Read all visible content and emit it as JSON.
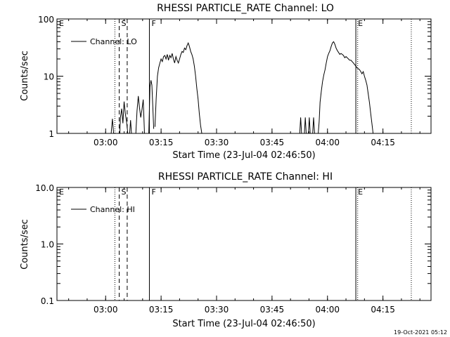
{
  "chart_data": [
    {
      "type": "line",
      "title": "RHESSI PARTICLE_RATE Channel: LO",
      "xlabel": "Start Time (23-Jul-04 02:46:50)",
      "ylabel": "Counts/sec",
      "yscale": "log",
      "ylim": [
        1,
        100
      ],
      "xlim": [
        "02:46:50",
        "04:28:00"
      ],
      "x_tick_labels": [
        "03:00",
        "03:15",
        "03:30",
        "03:45",
        "04:00",
        "04:15"
      ],
      "y_tick_labels": [
        "1",
        "10",
        "100"
      ],
      "legend": {
        "placement": "top-left",
        "entries": [
          "Channel: LO"
        ]
      },
      "markers": [
        {
          "label": "E",
          "time": "02:46:50",
          "style": "none"
        },
        {
          "label": "S",
          "time": "03:03:40",
          "style": "dashed"
        },
        {
          "label": "",
          "time": "03:05:50",
          "style": "dashed"
        },
        {
          "label": "F",
          "time": "03:11:50",
          "style": "solid"
        },
        {
          "label": "E",
          "time": "04:07:40",
          "style": "solid"
        }
      ],
      "dotted_lines": [
        "03:02:30",
        "04:08:10",
        "04:22:40"
      ],
      "series": [
        {
          "name": "Channel: LO",
          "segments": [
            [
              [
                "03:01:30",
                1
              ],
              [
                "03:01:50",
                1.8
              ],
              [
                "03:02:10",
                1
              ]
            ],
            [
              [
                "03:03:50",
                1
              ],
              [
                "03:04:00",
                1.9
              ],
              [
                "03:04:20",
                2.7
              ],
              [
                "03:04:40",
                1.5
              ],
              [
                "03:05:00",
                3.6
              ],
              [
                "03:05:20",
                2.2
              ],
              [
                "03:05:40",
                1.6
              ],
              [
                "03:06:00",
                1
              ]
            ],
            [
              [
                "03:06:30",
                1
              ],
              [
                "03:06:45",
                1.7
              ],
              [
                "03:07:00",
                1
              ]
            ],
            [
              [
                "03:08:10",
                1
              ],
              [
                "03:08:30",
                2.5
              ],
              [
                "03:08:50",
                4.5
              ],
              [
                "03:09:10",
                2.8
              ],
              [
                "03:09:30",
                1.9
              ],
              [
                "03:09:50",
                2.6
              ],
              [
                "03:10:10",
                3.9
              ],
              [
                "03:10:30",
                1
              ]
            ],
            [
              [
                "03:11:40",
                1
              ],
              [
                "03:12:00",
                6.5
              ],
              [
                "03:12:15",
                8.5
              ],
              [
                "03:12:30",
                7
              ],
              [
                "03:12:45",
                3
              ],
              [
                "03:13:00",
                1.2
              ]
            ],
            [
              [
                "03:13:20",
                1.3
              ],
              [
                "03:13:40",
                4
              ],
              [
                "03:14:00",
                10
              ],
              [
                "03:14:20",
                14
              ],
              [
                "03:14:40",
                17
              ],
              [
                "03:15:00",
                20
              ],
              [
                "03:15:20",
                18
              ],
              [
                "03:15:40",
                22
              ],
              [
                "03:16:00",
                23
              ],
              [
                "03:16:20",
                20
              ],
              [
                "03:16:40",
                24
              ],
              [
                "03:17:00",
                19
              ],
              [
                "03:17:20",
                23
              ],
              [
                "03:17:40",
                21
              ],
              [
                "03:18:00",
                25
              ],
              [
                "03:18:20",
                20
              ],
              [
                "03:18:40",
                17
              ],
              [
                "03:19:00",
                22
              ],
              [
                "03:19:20",
                19
              ],
              [
                "03:19:40",
                17
              ],
              [
                "03:20:00",
                20
              ],
              [
                "03:20:20",
                24
              ],
              [
                "03:20:40",
                27
              ],
              [
                "03:21:00",
                26
              ],
              [
                "03:21:20",
                31
              ],
              [
                "03:21:40",
                29
              ],
              [
                "03:22:00",
                34
              ],
              [
                "03:22:20",
                38
              ],
              [
                "03:22:40",
                33
              ],
              [
                "03:23:00",
                27
              ],
              [
                "03:23:20",
                24
              ],
              [
                "03:23:40",
                20
              ],
              [
                "03:24:00",
                15
              ],
              [
                "03:24:20",
                10
              ],
              [
                "03:24:40",
                6
              ],
              [
                "03:25:00",
                4
              ],
              [
                "03:25:20",
                2.2
              ],
              [
                "03:25:40",
                1.4
              ],
              [
                "03:26:00",
                1
              ]
            ],
            [
              [
                "03:52:30",
                1
              ],
              [
                "03:52:45",
                1.9
              ],
              [
                "03:53:00",
                1
              ]
            ],
            [
              [
                "03:53:45",
                1
              ],
              [
                "03:54:00",
                1.9
              ],
              [
                "03:54:15",
                1
              ]
            ],
            [
              [
                "03:54:50",
                1
              ],
              [
                "03:55:05",
                1.9
              ],
              [
                "03:55:20",
                1
              ]
            ],
            [
              [
                "03:56:00",
                1
              ],
              [
                "03:56:15",
                1.9
              ],
              [
                "03:56:30",
                1
              ]
            ],
            [
              [
                "03:57:30",
                1
              ],
              [
                "03:57:45",
                1.6
              ],
              [
                "03:58:00",
                3.5
              ],
              [
                "03:58:20",
                5.5
              ],
              [
                "03:58:40",
                8
              ],
              [
                "03:59:00",
                10.5
              ],
              [
                "03:59:20",
                13
              ],
              [
                "03:59:40",
                17
              ],
              [
                "04:00:00",
                22
              ],
              [
                "04:00:20",
                25
              ],
              [
                "04:00:40",
                28
              ],
              [
                "04:01:00",
                33
              ],
              [
                "04:01:20",
                38
              ],
              [
                "04:01:40",
                40
              ],
              [
                "04:02:00",
                36
              ],
              [
                "04:02:20",
                31
              ],
              [
                "04:02:40",
                28
              ],
              [
                "04:03:00",
                26
              ],
              [
                "04:03:20",
                24
              ],
              [
                "04:03:40",
                25
              ],
              [
                "04:04:00",
                24
              ],
              [
                "04:04:20",
                23
              ],
              [
                "04:04:40",
                21
              ],
              [
                "04:05:00",
                22
              ],
              [
                "04:05:20",
                21
              ],
              [
                "04:05:40",
                20
              ],
              [
                "04:06:00",
                19
              ],
              [
                "04:06:20",
                19
              ],
              [
                "04:06:40",
                18
              ],
              [
                "04:07:00",
                17
              ],
              [
                "04:07:20",
                16
              ],
              [
                "04:07:40",
                15
              ],
              [
                "04:08:00",
                14
              ],
              [
                "04:08:20",
                13.5
              ],
              [
                "04:08:40",
                13
              ],
              [
                "04:09:00",
                12
              ],
              [
                "04:09:20",
                11
              ],
              [
                "04:09:40",
                12
              ],
              [
                "04:10:00",
                10
              ],
              [
                "04:10:20",
                8.5
              ],
              [
                "04:10:40",
                7
              ],
              [
                "04:11:00",
                5
              ],
              [
                "04:11:20",
                3.5
              ],
              [
                "04:11:40",
                2.3
              ],
              [
                "04:12:00",
                1.5
              ],
              [
                "04:12:20",
                1
              ]
            ]
          ]
        }
      ]
    },
    {
      "type": "line",
      "title": "RHESSI PARTICLE_RATE Channel: HI",
      "xlabel": "Start Time (23-Jul-04 02:46:50)",
      "ylabel": "Counts/sec",
      "yscale": "log",
      "ylim": [
        0.1,
        10
      ],
      "xlim": [
        "02:46:50",
        "04:28:00"
      ],
      "x_tick_labels": [
        "03:00",
        "03:15",
        "03:30",
        "03:45",
        "04:00",
        "04:15"
      ],
      "y_tick_labels": [
        "0.1",
        "1.0",
        "10.0"
      ],
      "legend": {
        "placement": "top-left",
        "entries": [
          "Channel: HI"
        ]
      },
      "markers": [
        {
          "label": "E",
          "time": "02:46:50",
          "style": "none"
        },
        {
          "label": "S",
          "time": "03:03:40",
          "style": "dashed"
        },
        {
          "label": "",
          "time": "03:05:50",
          "style": "dashed"
        },
        {
          "label": "F",
          "time": "03:11:50",
          "style": "solid"
        },
        {
          "label": "E",
          "time": "04:07:40",
          "style": "solid"
        }
      ],
      "dotted_lines": [
        "03:02:30",
        "04:08:10",
        "04:22:40"
      ],
      "series": [
        {
          "name": "Channel: HI",
          "segments": []
        }
      ]
    }
  ],
  "footer": {
    "timestamp": "19-Oct-2021 05:12"
  }
}
